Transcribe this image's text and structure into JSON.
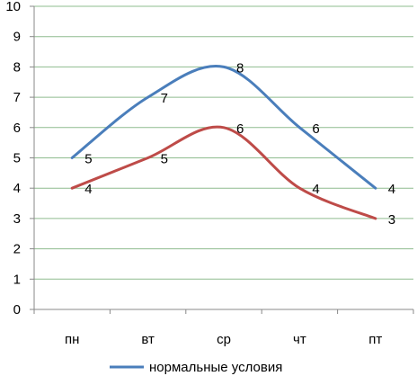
{
  "chart_data": {
    "type": "line",
    "categories": [
      "пн",
      "вт",
      "ср",
      "чт",
      "пт"
    ],
    "series": [
      {
        "name": "нормальные условия",
        "values": [
          5,
          7,
          8,
          6,
          4
        ],
        "color": "#4a7ebb"
      },
      {
        "name": "",
        "values": [
          4,
          5,
          6,
          4,
          3
        ],
        "color": "#be4b48"
      }
    ],
    "ylim": [
      0,
      10
    ],
    "yticks": [
      0,
      1,
      2,
      3,
      4,
      5,
      6,
      7,
      8,
      9,
      10
    ],
    "grid": true,
    "gridline_color": "#8fbc8f",
    "legend_position": "bottom",
    "title": "",
    "xlabel": "",
    "ylabel": ""
  }
}
